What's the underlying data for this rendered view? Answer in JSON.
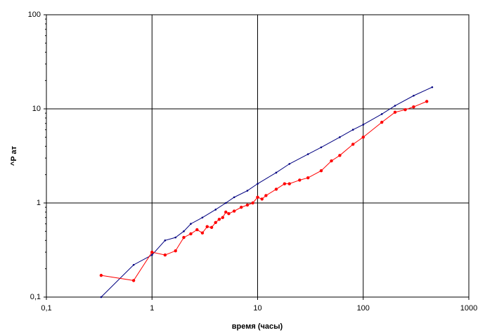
{
  "chart_data": {
    "type": "line",
    "x_label": "время (часы)",
    "y_label": "^P ат",
    "xscale": "log",
    "yscale": "log",
    "grid": true,
    "xlim": [
      0.1,
      1000
    ],
    "ylim": [
      0.1,
      100
    ],
    "xticks": [
      {
        "value": 0.1,
        "label": "0,1"
      },
      1,
      10,
      100,
      1000
    ],
    "yticks": [
      {
        "value": 0.1,
        "label": "0,1"
      },
      1,
      10,
      100
    ],
    "series": [
      {
        "color": "#000080",
        "x": [
          0.33,
          0.67,
          1,
          1.33,
          1.67,
          2,
          2.33,
          3,
          4,
          5,
          6,
          8,
          10,
          15,
          20,
          30,
          40,
          60,
          80,
          100,
          150,
          200,
          300,
          450
        ],
        "values": [
          0.1,
          0.22,
          0.28,
          0.4,
          0.43,
          0.5,
          0.6,
          0.7,
          0.85,
          1.0,
          1.15,
          1.35,
          1.6,
          2.1,
          2.6,
          3.3,
          3.9,
          5.0,
          6.0,
          6.8,
          8.8,
          10.8,
          13.8,
          17
        ]
      },
      {
        "color": "#ff0000",
        "x": [
          0.33,
          0.67,
          1,
          1.33,
          1.67,
          2,
          2.33,
          2.67,
          3,
          3.33,
          3.67,
          4,
          4.33,
          4.67,
          5,
          5.33,
          6,
          7,
          8,
          9,
          10,
          11,
          12,
          15,
          18,
          20,
          25,
          30,
          40,
          50,
          60,
          80,
          100,
          150,
          200,
          250,
          300,
          400
        ],
        "values": [
          0.17,
          0.15,
          0.3,
          0.28,
          0.31,
          0.43,
          0.47,
          0.52,
          0.48,
          0.56,
          0.55,
          0.62,
          0.67,
          0.7,
          0.8,
          0.77,
          0.82,
          0.9,
          0.95,
          1.0,
          1.15,
          1.1,
          1.2,
          1.4,
          1.6,
          1.6,
          1.75,
          1.85,
          2.2,
          2.8,
          3.2,
          4.2,
          5.0,
          7.2,
          9.2,
          9.8,
          10.5,
          12
        ]
      }
    ]
  }
}
